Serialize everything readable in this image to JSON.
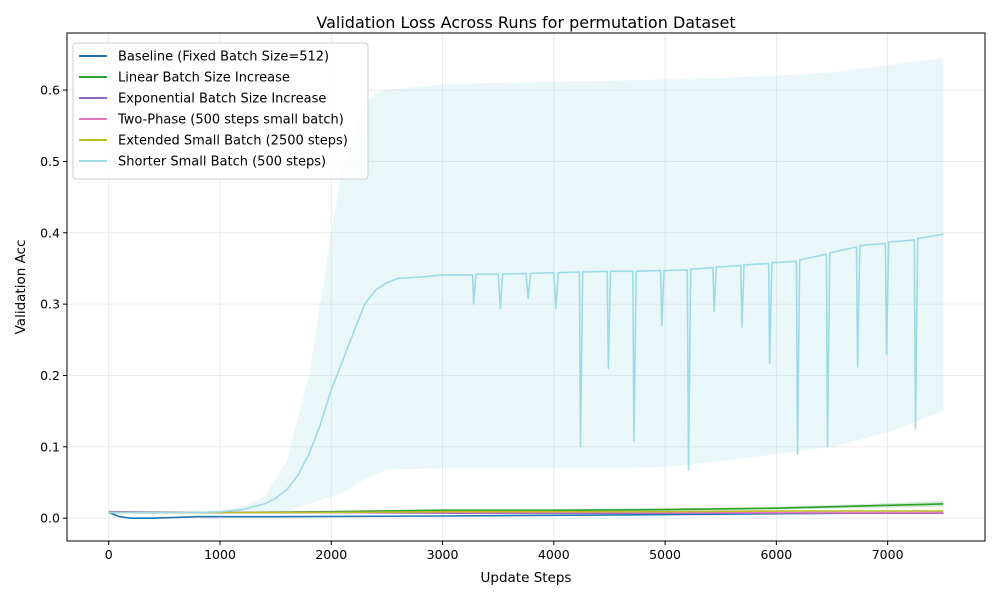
{
  "chart_data": {
    "type": "line",
    "title": "Validation Loss Across Runs for permutation Dataset",
    "xlabel": "Update Steps",
    "ylabel": "Validation Acc",
    "xlim": [
      -375,
      7875
    ],
    "ylim": [
      -0.032,
      0.68
    ],
    "xticks": [
      0,
      1000,
      2000,
      3000,
      4000,
      5000,
      6000,
      7000
    ],
    "yticks": [
      0.0,
      0.1,
      0.2,
      0.3,
      0.4,
      0.5,
      0.6
    ],
    "ytick_labels": [
      "0.0",
      "0.1",
      "0.2",
      "0.3",
      "0.4",
      "0.5",
      "0.6"
    ],
    "grid": true,
    "legend_position": "top-left",
    "series": [
      {
        "name": "Baseline (Fixed Batch Size=512)",
        "color": "#1f77b4",
        "x": [
          0,
          100,
          200,
          400,
          800,
          1500,
          3000,
          5000,
          7500
        ],
        "y": [
          0.008,
          0.002,
          0.0,
          0.0,
          0.002,
          0.002,
          0.003,
          0.005,
          0.008
        ]
      },
      {
        "name": "Linear Batch Size Increase",
        "color": "#2ca02c",
        "x": [
          0,
          1000,
          2000,
          2500,
          3000,
          4000,
          5000,
          6000,
          7000,
          7500
        ],
        "y": [
          0.008,
          0.008,
          0.009,
          0.01,
          0.011,
          0.011,
          0.012,
          0.014,
          0.018,
          0.02
        ],
        "band_upper": [
          0.009,
          0.009,
          0.01,
          0.012,
          0.013,
          0.013,
          0.014,
          0.016,
          0.021,
          0.024
        ],
        "band_lower": [
          0.007,
          0.007,
          0.008,
          0.008,
          0.009,
          0.009,
          0.01,
          0.012,
          0.015,
          0.016
        ]
      },
      {
        "name": "Exponential Batch Size Increase",
        "color": "#9467bd",
        "x": [
          0,
          1000,
          2000,
          3000,
          4000,
          5000,
          6000,
          7000,
          7500
        ],
        "y": [
          0.009,
          0.008,
          0.008,
          0.007,
          0.007,
          0.007,
          0.007,
          0.007,
          0.007
        ]
      },
      {
        "name": "Two-Phase (500 steps small batch)",
        "color": "#e377c2",
        "x": [
          0,
          1000,
          2000,
          3000,
          4000,
          5000,
          6000,
          7000,
          7500
        ],
        "y": [
          0.008,
          0.008,
          0.008,
          0.008,
          0.008,
          0.008,
          0.008,
          0.008,
          0.008
        ]
      },
      {
        "name": "Extended Small Batch (2500 steps)",
        "color": "#bcbd22",
        "x": [
          0,
          1000,
          2000,
          3000,
          4000,
          5000,
          6000,
          7000,
          7500
        ],
        "y": [
          0.008,
          0.008,
          0.008,
          0.009,
          0.009,
          0.009,
          0.01,
          0.01,
          0.01
        ]
      },
      {
        "name": "Shorter Small Batch (500 steps)",
        "color": "#9edae5",
        "x": [
          0,
          400,
          800,
          1000,
          1200,
          1400,
          1500,
          1600,
          1700,
          1800,
          1900,
          2000,
          2100,
          2200,
          2300,
          2400,
          2500,
          2600,
          2800,
          3000,
          3270,
          3280,
          3300,
          3500,
          3520,
          3540,
          3750,
          3770,
          3790,
          4000,
          4020,
          4040,
          4230,
          4240,
          4260,
          4480,
          4490,
          4510,
          4710,
          4720,
          4740,
          4960,
          4970,
          4990,
          5200,
          5210,
          5230,
          5430,
          5440,
          5460,
          5680,
          5690,
          5710,
          5930,
          5940,
          5960,
          6180,
          6190,
          6210,
          6450,
          6460,
          6480,
          6720,
          6730,
          6750,
          6980,
          6990,
          7010,
          7240,
          7250,
          7270,
          7500
        ],
        "y": [
          0.008,
          0.008,
          0.008,
          0.009,
          0.012,
          0.02,
          0.028,
          0.04,
          0.06,
          0.09,
          0.13,
          0.18,
          0.22,
          0.26,
          0.3,
          0.32,
          0.33,
          0.336,
          0.338,
          0.341,
          0.341,
          0.3,
          0.342,
          0.342,
          0.294,
          0.342,
          0.343,
          0.308,
          0.343,
          0.344,
          0.294,
          0.344,
          0.345,
          0.1,
          0.345,
          0.346,
          0.21,
          0.346,
          0.346,
          0.108,
          0.346,
          0.347,
          0.27,
          0.347,
          0.348,
          0.068,
          0.349,
          0.351,
          0.29,
          0.352,
          0.354,
          0.268,
          0.355,
          0.357,
          0.217,
          0.358,
          0.36,
          0.09,
          0.362,
          0.37,
          0.1,
          0.372,
          0.38,
          0.212,
          0.382,
          0.385,
          0.23,
          0.387,
          0.39,
          0.125,
          0.392,
          0.398
        ],
        "band_x": [
          0,
          400,
          800,
          1000,
          1200,
          1400,
          1600,
          1800,
          1900,
          2000,
          2100,
          2200,
          2300,
          2400,
          2500,
          3000,
          3500,
          4000,
          4500,
          5000,
          5500,
          6000,
          6500,
          7000,
          7500
        ],
        "band_upper": [
          0.009,
          0.009,
          0.009,
          0.01,
          0.016,
          0.03,
          0.08,
          0.2,
          0.3,
          0.4,
          0.49,
          0.54,
          0.58,
          0.595,
          0.6,
          0.608,
          0.61,
          0.612,
          0.613,
          0.615,
          0.617,
          0.62,
          0.625,
          0.635,
          0.645
        ],
        "band_lower": [
          0.007,
          0.007,
          0.007,
          0.007,
          0.007,
          0.008,
          0.01,
          0.02,
          0.025,
          0.03,
          0.035,
          0.045,
          0.055,
          0.062,
          0.068,
          0.07,
          0.07,
          0.07,
          0.07,
          0.072,
          0.08,
          0.09,
          0.1,
          0.12,
          0.15
        ]
      }
    ]
  }
}
